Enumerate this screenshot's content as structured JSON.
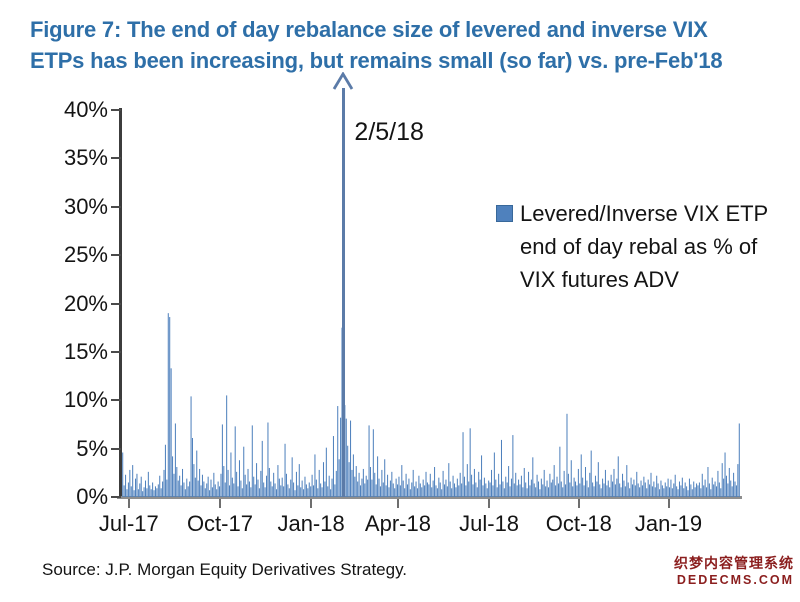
{
  "figure": {
    "title_lines": [
      "Figure 7: The end of day rebalance size of levered and inverse VIX",
      "ETPs has been increasing, but remains small (so far) vs. pre-Feb'18"
    ],
    "source": "Source: J.P. Morgan Equity Derivatives Strategy.",
    "watermark_line1": "织梦内容管理系统",
    "watermark_line2": "DEDECMS.COM",
    "title_color": "#2e6fa8",
    "watermark_color": "#8b1e1e"
  },
  "chart_data": {
    "type": "bar",
    "title": "End of day rebalance size of levered and inverse VIX ETPs as % of VIX futures ADV",
    "ylabel": "",
    "xlabel": "",
    "ylim": [
      0,
      40
    ],
    "grid": false,
    "y_ticks": [
      "0%",
      "5%",
      "10%",
      "15%",
      "20%",
      "25%",
      "30%",
      "35%",
      "40%"
    ],
    "x_ticks": [
      "Jul-17",
      "Oct-17",
      "Jan-18",
      "Apr-18",
      "Jul-18",
      "Oct-18",
      "Jan-19"
    ],
    "x_tick_indices": [
      5,
      69,
      133,
      194,
      258,
      321,
      384
    ],
    "legend_lines": [
      "Levered/Inverse VIX ETP",
      "end of day rebal as % of",
      "VIX futures ADV"
    ],
    "legend_position": "upper right",
    "bar_color": "#4f81bd",
    "annotation": {
      "label": "2/5/18",
      "series_index": 155,
      "clipped_at_ylim": true,
      "arrow_color": "#5b7ba8"
    },
    "values": [
      4.6,
      1.2,
      2.3,
      0.8,
      1.5,
      2.8,
      1.1,
      3.3,
      0.7,
      1.9,
      2.4,
      0.8,
      1.4,
      2.1,
      0.6,
      1.0,
      1.7,
      0.9,
      2.6,
      1.2,
      0.8,
      1.5,
      0.7,
      1.1,
      0.9,
      1.3,
      2.2,
      0.9,
      1.6,
      2.8,
      5.4,
      1.8,
      19.0,
      18.6,
      13.3,
      4.2,
      2.4,
      7.6,
      3.1,
      1.7,
      2.2,
      1.2,
      2.9,
      1.5,
      0.8,
      1.9,
      1.1,
      1.6,
      10.4,
      6.1,
      3.4,
      2.0,
      4.8,
      1.7,
      2.9,
      1.2,
      2.3,
      1.6,
      0.9,
      1.4,
      2.1,
      0.7,
      1.8,
      1.0,
      2.5,
      1.3,
      0.8,
      1.6,
      1.1,
      2.4,
      7.5,
      3.2,
      1.5,
      10.5,
      2.8,
      1.2,
      4.6,
      2.0,
      1.4,
      7.3,
      2.6,
      1.1,
      3.8,
      1.7,
      0.9,
      5.2,
      2.3,
      1.3,
      2.9,
      1.6,
      1.0,
      7.4,
      2.1,
      1.3,
      3.5,
      1.8,
      0.9,
      2.7,
      5.8,
      1.5,
      1.0,
      2.2,
      7.7,
      3.0,
      1.6,
      1.1,
      2.5,
      1.4,
      0.8,
      3.3,
      1.9,
      1.2,
      2.0,
      1.1,
      5.5,
      2.4,
      1.3,
      0.9,
      1.8,
      4.1,
      1.5,
      0.7,
      2.6,
      1.2,
      3.4,
      1.0,
      1.7,
      0.8,
      2.1,
      1.3,
      0.9,
      1.5,
      1.1,
      2.3,
      1.2,
      4.4,
      1.8,
      0.9,
      2.8,
      1.4,
      1.0,
      3.6,
      1.6,
      5.1,
      1.1,
      2.2,
      0.8,
      1.9,
      6.3,
      1.3,
      2.7,
      9.4,
      3.9,
      8.2,
      17.5,
      40.0,
      9.5,
      8.1,
      5.3,
      3.6,
      7.9,
      2.8,
      4.4,
      2.1,
      3.2,
      1.6,
      2.5,
      1.2,
      1.9,
      2.9,
      1.4,
      2.2,
      1.8,
      7.4,
      3.1,
      1.8,
      7.0,
      2.5,
      1.3,
      4.2,
      1.9,
      1.1,
      2.8,
      1.5,
      3.9,
      1.2,
      2.3,
      1.0,
      1.7,
      2.6,
      1.4,
      0.9,
      1.9,
      1.3,
      2.1,
      1.2,
      3.3,
      1.7,
      0.9,
      2.4,
      1.3,
      1.9,
      0.8,
      1.5,
      2.8,
      1.1,
      1.6,
      0.9,
      2.2,
      1.4,
      1.0,
      1.8,
      1.2,
      2.6,
      1.5,
      1.3,
      2.4,
      1.0,
      1.7,
      3.1,
      1.2,
      0.9,
      2.0,
      1.5,
      0.8,
      2.7,
      1.3,
      1.8,
      1.1,
      3.5,
      1.6,
      0.9,
      2.2,
      1.4,
      1.0,
      1.9,
      1.2,
      2.5,
      1.4,
      6.7,
      2.1,
      1.2,
      3.4,
      1.6,
      7.1,
      2.3,
      1.3,
      2.9,
      1.5,
      1.0,
      2.6,
      1.8,
      4.3,
      1.2,
      2.0,
      1.4,
      0.9,
      1.7,
      1.5,
      2.8,
      1.2,
      4.6,
      1.8,
      1.0,
      2.4,
      1.3,
      5.9,
      1.6,
      0.9,
      2.1,
      1.5,
      3.2,
      1.1,
      1.9,
      6.4,
      1.4,
      2.5,
      1.2,
      1.8,
      1.3,
      2.2,
      1.0,
      3.0,
      1.5,
      0.9,
      2.6,
      1.2,
      1.8,
      4.1,
      1.4,
      1.0,
      2.3,
      1.6,
      0.8,
      1.9,
      1.3,
      2.8,
      1.1,
      1.7,
      1.0,
      2.4,
      1.5,
      1.8,
      3.3,
      1.2,
      2.1,
      1.4,
      5.2,
      1.6,
      1.0,
      2.7,
      1.3,
      8.6,
      2.4,
      1.5,
      3.8,
      1.1,
      2.0,
      1.6,
      1.2,
      2.9,
      1.4,
      4.4,
      2.0,
      1.2,
      3.1,
      1.7,
      1.0,
      2.5,
      4.8,
      1.5,
      1.1,
      2.2,
      1.6,
      3.6,
      1.3,
      0.9,
      1.9,
      1.4,
      2.8,
      1.2,
      1.7,
      1.0,
      2.3,
      1.6,
      2.9,
      1.3,
      1.9,
      4.2,
      1.4,
      1.0,
      2.4,
      1.7,
      1.1,
      3.3,
      1.5,
      0.9,
      2.0,
      1.3,
      1.8,
      1.2,
      2.6,
      1.4,
      1.0,
      1.7,
      1.2,
      2.1,
      1.5,
      0.9,
      1.8,
      1.3,
      2.5,
      1.1,
      1.6,
      1.0,
      2.2,
      1.4,
      0.8,
      1.7,
      1.2,
      0.9,
      1.5,
      1.1,
      1.9,
      1.0,
      1.8,
      0.9,
      1.4,
      2.3,
      1.1,
      0.8,
      1.6,
      1.2,
      2.0,
      0.9,
      1.5,
      1.1,
      0.7,
      1.9,
      1.3,
      0.8,
      1.6,
      1.0,
      1.4,
      1.2,
      1.5,
      0.9,
      2.4,
      1.2,
      1.8,
      1.0,
      3.1,
      1.4,
      0.8,
      2.0,
      1.3,
      1.6,
      1.1,
      2.7,
      1.5,
      0.9,
      3.5,
      1.9,
      4.6,
      2.2,
      1.4,
      3.0,
      1.7,
      1.1,
      2.5,
      1.6,
      1.2,
      3.4,
      7.6
    ]
  }
}
